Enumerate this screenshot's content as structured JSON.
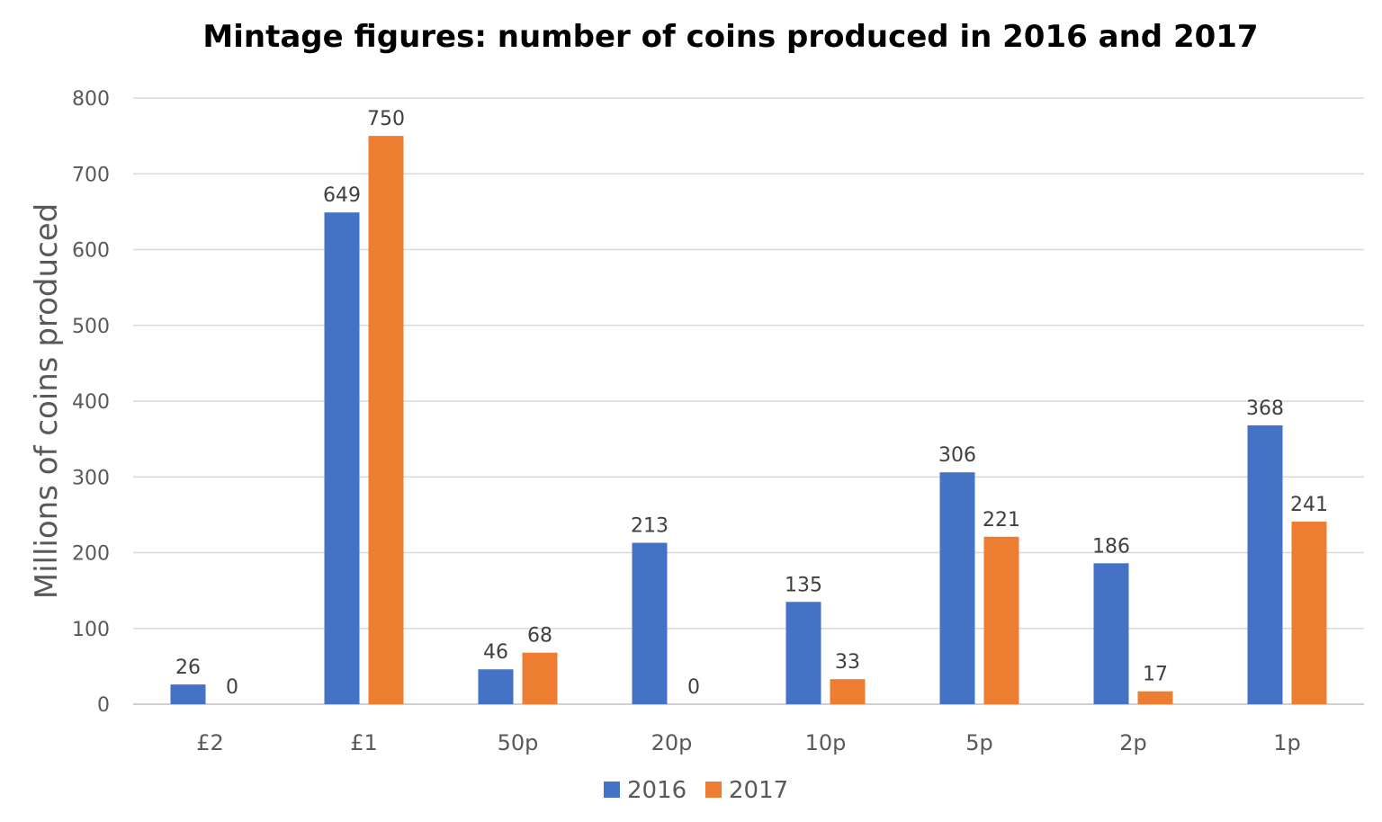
{
  "chart_data": {
    "type": "bar",
    "title": "Mintage figures:  number of coins produced in 2016 and 2017",
    "xlabel": "",
    "ylabel": "Millions of coins produced",
    "categories": [
      "£2",
      "£1",
      "50p",
      "20p",
      "10p",
      "5p",
      "2p",
      "1p"
    ],
    "series": [
      {
        "name": "2016",
        "color": "#4472c4",
        "values": [
          26,
          649,
          46,
          213,
          135,
          306,
          186,
          368
        ]
      },
      {
        "name": "2017",
        "color": "#ed7d31",
        "values": [
          0,
          750,
          68,
          0,
          33,
          221,
          17,
          241
        ]
      }
    ],
    "ylim": [
      0,
      800
    ],
    "yticks": [
      0,
      100,
      200,
      300,
      400,
      500,
      600,
      700,
      800
    ],
    "grid": true,
    "legend_position": "bottom-center",
    "data_labels": true
  }
}
